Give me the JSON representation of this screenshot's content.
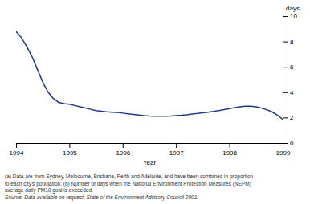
{
  "chart_data": {
    "type": "line",
    "xlabel": "Year",
    "ylabel": "days",
    "x": [
      1994.0,
      1994.1,
      1994.2,
      1994.3,
      1994.4,
      1994.5,
      1994.6,
      1994.7,
      1994.8,
      1994.9,
      1995.0,
      1995.1,
      1995.2,
      1995.3,
      1995.4,
      1995.5,
      1995.6,
      1995.7,
      1995.8,
      1995.9,
      1996.0,
      1996.1,
      1996.2,
      1996.3,
      1996.4,
      1996.5,
      1996.6,
      1996.7,
      1996.8,
      1996.9,
      1997.0,
      1997.1,
      1997.2,
      1997.3,
      1997.4,
      1997.5,
      1997.6,
      1997.7,
      1997.8,
      1997.9,
      1998.0,
      1998.1,
      1998.2,
      1998.3,
      1998.4,
      1998.5,
      1998.6,
      1998.7,
      1998.8,
      1998.9,
      1999.0
    ],
    "values": [
      8.8,
      8.3,
      7.6,
      6.8,
      5.8,
      4.8,
      4.0,
      3.5,
      3.2,
      3.1,
      3.05,
      2.95,
      2.85,
      2.75,
      2.65,
      2.55,
      2.5,
      2.45,
      2.42,
      2.4,
      2.35,
      2.3,
      2.25,
      2.2,
      2.15,
      2.12,
      2.1,
      2.1,
      2.1,
      2.12,
      2.15,
      2.18,
      2.22,
      2.28,
      2.32,
      2.38,
      2.42,
      2.48,
      2.55,
      2.62,
      2.7,
      2.78,
      2.85,
      2.9,
      2.9,
      2.85,
      2.75,
      2.62,
      2.45,
      2.2,
      1.85
    ],
    "color": "#1f3a8a",
    "xlim": [
      1994,
      1999
    ],
    "ylim": [
      0,
      10
    ],
    "xticks": [
      1994,
      1995,
      1996,
      1997,
      1998,
      1999
    ],
    "yticks": [
      0,
      2,
      4,
      6,
      8,
      10
    ],
    "annotations": [
      "(a) Data are from Sydney, Melbourne, Brisbane, Perth and Adelaide, and have been combined in proportion",
      "to each city's population.  (b) Number of days when the National Environment Protection Measures (NEPM)",
      "average daily PM10 goal is exceeded.",
      "Source: Data available on request, State of the Environment Advisory Council 2001."
    ]
  }
}
